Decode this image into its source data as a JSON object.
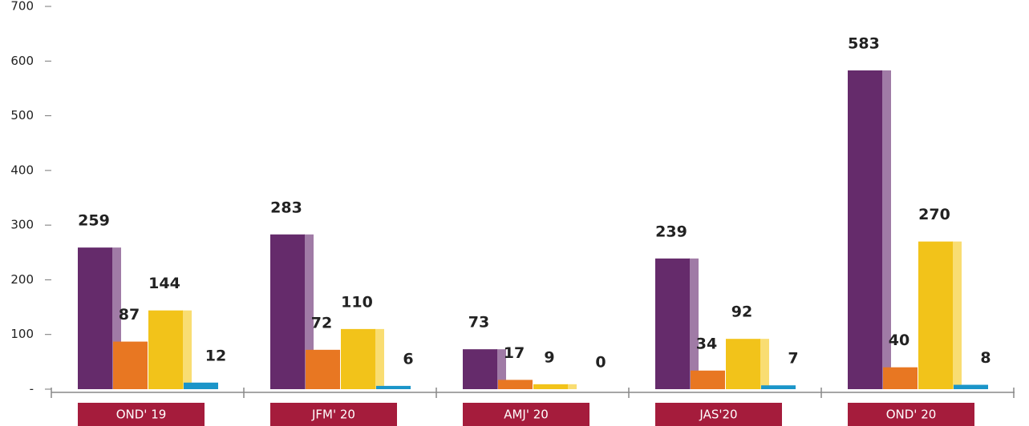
{
  "chart_data": {
    "type": "bar",
    "categories": [
      "OND' 19",
      "JFM' 20",
      "AMJ' 20",
      "JAS'20",
      "OND' 20"
    ],
    "series": [
      {
        "color": "#652b6b",
        "side_color": "#a07ba6",
        "values": [
          259,
          283,
          73,
          239,
          583
        ]
      },
      {
        "color": "#e87722",
        "values": [
          87,
          72,
          17,
          34,
          40
        ]
      },
      {
        "color": "#f2c31a",
        "side_color": "#f9dd72",
        "values": [
          144,
          110,
          9,
          92,
          270
        ]
      },
      {
        "color": "#1b95c9",
        "values": [
          12,
          6,
          0,
          7,
          8
        ]
      }
    ],
    "ylim": [
      0,
      700
    ],
    "yticks": [
      {
        "value": 0,
        "label": "-"
      },
      100,
      200,
      300,
      400,
      500,
      600,
      700
    ],
    "category_box_color": "#a51c3c"
  }
}
